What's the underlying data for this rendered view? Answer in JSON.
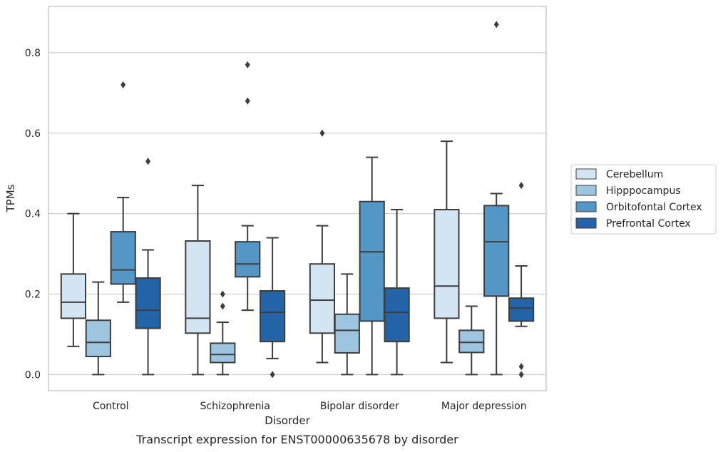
{
  "caption": "Transcript expression for ENST00000635678 by disorder",
  "chart_data": {
    "type": "box",
    "xlabel": "Disorder",
    "ylabel": "TPMs",
    "ylim": [
      -0.04,
      0.915
    ],
    "yticks": [
      0.0,
      0.2,
      0.4,
      0.6,
      0.8
    ],
    "ytick_labels": [
      "0.0",
      "0.2",
      "0.4",
      "0.6",
      "0.8"
    ],
    "grid": "horizontal",
    "legend_position": "right",
    "categories": [
      "Control",
      "Schizophrenia",
      "Bipolar disorder",
      "Major depression"
    ],
    "series": [
      {
        "name": "Cerebellum",
        "color": "#d3e4f3",
        "boxes": [
          {
            "whisker_low": 0.07,
            "q1": 0.14,
            "median": 0.18,
            "q3": 0.25,
            "whisker_high": 0.4,
            "outliers": []
          },
          {
            "whisker_low": 0.0,
            "q1": 0.103,
            "median": 0.14,
            "q3": 0.332,
            "whisker_high": 0.47,
            "outliers": []
          },
          {
            "whisker_low": 0.03,
            "q1": 0.103,
            "median": 0.185,
            "q3": 0.275,
            "whisker_high": 0.37,
            "outliers": [
              0.6
            ]
          },
          {
            "whisker_low": 0.03,
            "q1": 0.14,
            "median": 0.22,
            "q3": 0.41,
            "whisker_high": 0.58,
            "outliers": []
          }
        ]
      },
      {
        "name": "Hipppocampus",
        "color": "#9dc5e0",
        "boxes": [
          {
            "whisker_low": 0.0,
            "q1": 0.045,
            "median": 0.08,
            "q3": 0.135,
            "whisker_high": 0.23,
            "outliers": []
          },
          {
            "whisker_low": 0.0,
            "q1": 0.03,
            "median": 0.05,
            "q3": 0.078,
            "whisker_high": 0.13,
            "outliers": [
              0.17,
              0.2
            ]
          },
          {
            "whisker_low": 0.0,
            "q1": 0.054,
            "median": 0.11,
            "q3": 0.15,
            "whisker_high": 0.25,
            "outliers": []
          },
          {
            "whisker_low": 0.0,
            "q1": 0.055,
            "median": 0.08,
            "q3": 0.11,
            "whisker_high": 0.17,
            "outliers": []
          }
        ]
      },
      {
        "name": "Orbitofontal Cortex",
        "color": "#5497c6",
        "boxes": [
          {
            "whisker_low": 0.18,
            "q1": 0.225,
            "median": 0.26,
            "q3": 0.355,
            "whisker_high": 0.44,
            "outliers": [
              0.72
            ]
          },
          {
            "whisker_low": 0.16,
            "q1": 0.243,
            "median": 0.275,
            "q3": 0.33,
            "whisker_high": 0.37,
            "outliers": [
              0.68,
              0.77
            ]
          },
          {
            "whisker_low": 0.0,
            "q1": 0.133,
            "median": 0.305,
            "q3": 0.43,
            "whisker_high": 0.54,
            "outliers": []
          },
          {
            "whisker_low": 0.0,
            "q1": 0.195,
            "median": 0.33,
            "q3": 0.42,
            "whisker_high": 0.45,
            "outliers": [
              0.87
            ]
          }
        ]
      },
      {
        "name": "Prefrontal Cortex",
        "color": "#2364a8",
        "boxes": [
          {
            "whisker_low": 0.0,
            "q1": 0.115,
            "median": 0.16,
            "q3": 0.24,
            "whisker_high": 0.31,
            "outliers": [
              0.53
            ]
          },
          {
            "whisker_low": 0.04,
            "q1": 0.082,
            "median": 0.155,
            "q3": 0.208,
            "whisker_high": 0.34,
            "outliers": [
              0.0
            ]
          },
          {
            "whisker_low": 0.0,
            "q1": 0.082,
            "median": 0.155,
            "q3": 0.215,
            "whisker_high": 0.41,
            "outliers": []
          },
          {
            "whisker_low": 0.12,
            "q1": 0.133,
            "median": 0.165,
            "q3": 0.19,
            "whisker_high": 0.27,
            "outliers": [
              0.47,
              0.02,
              0.0
            ]
          }
        ]
      }
    ]
  }
}
